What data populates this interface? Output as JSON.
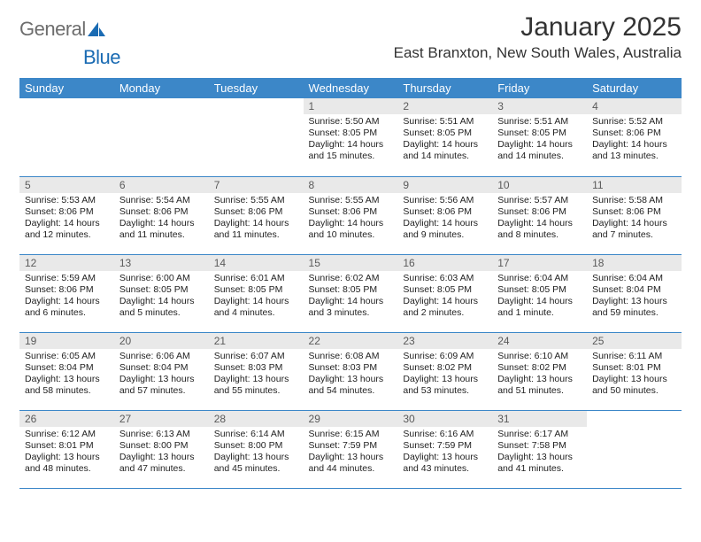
{
  "logo": {
    "general": "General",
    "blue": "Blue"
  },
  "title": "January 2025",
  "location": "East Branxton, New South Wales, Australia",
  "colors": {
    "header_bg": "#3c87c8",
    "header_fg": "#ffffff",
    "daynum_bg": "#e9e9e9",
    "logo_gray": "#6d6d6d",
    "logo_blue": "#1a6bb3"
  },
  "daynames": [
    "Sunday",
    "Monday",
    "Tuesday",
    "Wednesday",
    "Thursday",
    "Friday",
    "Saturday"
  ],
  "weeks": [
    [
      {
        "n": "",
        "sr": "",
        "ss": "",
        "dl": ""
      },
      {
        "n": "",
        "sr": "",
        "ss": "",
        "dl": ""
      },
      {
        "n": "",
        "sr": "",
        "ss": "",
        "dl": ""
      },
      {
        "n": "1",
        "sr": "Sunrise: 5:50 AM",
        "ss": "Sunset: 8:05 PM",
        "dl": "Daylight: 14 hours and 15 minutes."
      },
      {
        "n": "2",
        "sr": "Sunrise: 5:51 AM",
        "ss": "Sunset: 8:05 PM",
        "dl": "Daylight: 14 hours and 14 minutes."
      },
      {
        "n": "3",
        "sr": "Sunrise: 5:51 AM",
        "ss": "Sunset: 8:05 PM",
        "dl": "Daylight: 14 hours and 14 minutes."
      },
      {
        "n": "4",
        "sr": "Sunrise: 5:52 AM",
        "ss": "Sunset: 8:06 PM",
        "dl": "Daylight: 14 hours and 13 minutes."
      }
    ],
    [
      {
        "n": "5",
        "sr": "Sunrise: 5:53 AM",
        "ss": "Sunset: 8:06 PM",
        "dl": "Daylight: 14 hours and 12 minutes."
      },
      {
        "n": "6",
        "sr": "Sunrise: 5:54 AM",
        "ss": "Sunset: 8:06 PM",
        "dl": "Daylight: 14 hours and 11 minutes."
      },
      {
        "n": "7",
        "sr": "Sunrise: 5:55 AM",
        "ss": "Sunset: 8:06 PM",
        "dl": "Daylight: 14 hours and 11 minutes."
      },
      {
        "n": "8",
        "sr": "Sunrise: 5:55 AM",
        "ss": "Sunset: 8:06 PM",
        "dl": "Daylight: 14 hours and 10 minutes."
      },
      {
        "n": "9",
        "sr": "Sunrise: 5:56 AM",
        "ss": "Sunset: 8:06 PM",
        "dl": "Daylight: 14 hours and 9 minutes."
      },
      {
        "n": "10",
        "sr": "Sunrise: 5:57 AM",
        "ss": "Sunset: 8:06 PM",
        "dl": "Daylight: 14 hours and 8 minutes."
      },
      {
        "n": "11",
        "sr": "Sunrise: 5:58 AM",
        "ss": "Sunset: 8:06 PM",
        "dl": "Daylight: 14 hours and 7 minutes."
      }
    ],
    [
      {
        "n": "12",
        "sr": "Sunrise: 5:59 AM",
        "ss": "Sunset: 8:06 PM",
        "dl": "Daylight: 14 hours and 6 minutes."
      },
      {
        "n": "13",
        "sr": "Sunrise: 6:00 AM",
        "ss": "Sunset: 8:05 PM",
        "dl": "Daylight: 14 hours and 5 minutes."
      },
      {
        "n": "14",
        "sr": "Sunrise: 6:01 AM",
        "ss": "Sunset: 8:05 PM",
        "dl": "Daylight: 14 hours and 4 minutes."
      },
      {
        "n": "15",
        "sr": "Sunrise: 6:02 AM",
        "ss": "Sunset: 8:05 PM",
        "dl": "Daylight: 14 hours and 3 minutes."
      },
      {
        "n": "16",
        "sr": "Sunrise: 6:03 AM",
        "ss": "Sunset: 8:05 PM",
        "dl": "Daylight: 14 hours and 2 minutes."
      },
      {
        "n": "17",
        "sr": "Sunrise: 6:04 AM",
        "ss": "Sunset: 8:05 PM",
        "dl": "Daylight: 14 hours and 1 minute."
      },
      {
        "n": "18",
        "sr": "Sunrise: 6:04 AM",
        "ss": "Sunset: 8:04 PM",
        "dl": "Daylight: 13 hours and 59 minutes."
      }
    ],
    [
      {
        "n": "19",
        "sr": "Sunrise: 6:05 AM",
        "ss": "Sunset: 8:04 PM",
        "dl": "Daylight: 13 hours and 58 minutes."
      },
      {
        "n": "20",
        "sr": "Sunrise: 6:06 AM",
        "ss": "Sunset: 8:04 PM",
        "dl": "Daylight: 13 hours and 57 minutes."
      },
      {
        "n": "21",
        "sr": "Sunrise: 6:07 AM",
        "ss": "Sunset: 8:03 PM",
        "dl": "Daylight: 13 hours and 55 minutes."
      },
      {
        "n": "22",
        "sr": "Sunrise: 6:08 AM",
        "ss": "Sunset: 8:03 PM",
        "dl": "Daylight: 13 hours and 54 minutes."
      },
      {
        "n": "23",
        "sr": "Sunrise: 6:09 AM",
        "ss": "Sunset: 8:02 PM",
        "dl": "Daylight: 13 hours and 53 minutes."
      },
      {
        "n": "24",
        "sr": "Sunrise: 6:10 AM",
        "ss": "Sunset: 8:02 PM",
        "dl": "Daylight: 13 hours and 51 minutes."
      },
      {
        "n": "25",
        "sr": "Sunrise: 6:11 AM",
        "ss": "Sunset: 8:01 PM",
        "dl": "Daylight: 13 hours and 50 minutes."
      }
    ],
    [
      {
        "n": "26",
        "sr": "Sunrise: 6:12 AM",
        "ss": "Sunset: 8:01 PM",
        "dl": "Daylight: 13 hours and 48 minutes."
      },
      {
        "n": "27",
        "sr": "Sunrise: 6:13 AM",
        "ss": "Sunset: 8:00 PM",
        "dl": "Daylight: 13 hours and 47 minutes."
      },
      {
        "n": "28",
        "sr": "Sunrise: 6:14 AM",
        "ss": "Sunset: 8:00 PM",
        "dl": "Daylight: 13 hours and 45 minutes."
      },
      {
        "n": "29",
        "sr": "Sunrise: 6:15 AM",
        "ss": "Sunset: 7:59 PM",
        "dl": "Daylight: 13 hours and 44 minutes."
      },
      {
        "n": "30",
        "sr": "Sunrise: 6:16 AM",
        "ss": "Sunset: 7:59 PM",
        "dl": "Daylight: 13 hours and 43 minutes."
      },
      {
        "n": "31",
        "sr": "Sunrise: 6:17 AM",
        "ss": "Sunset: 7:58 PM",
        "dl": "Daylight: 13 hours and 41 minutes."
      },
      {
        "n": "",
        "sr": "",
        "ss": "",
        "dl": ""
      }
    ]
  ]
}
